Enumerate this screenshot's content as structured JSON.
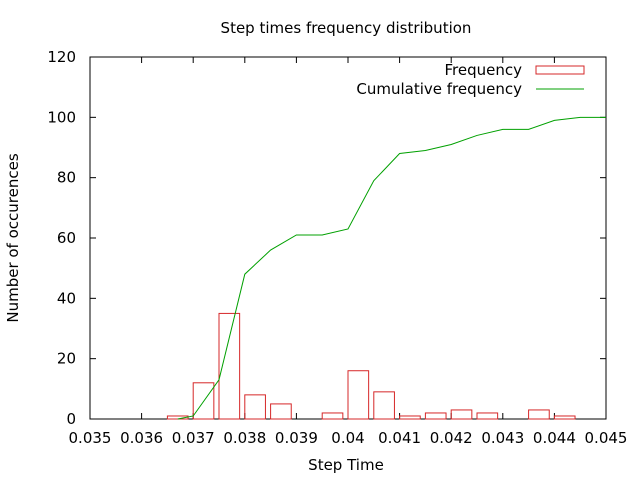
{
  "chart_data": {
    "type": "bar",
    "title": "Step times frequency distribution",
    "xlabel": "Step Time",
    "ylabel": "Number of occurences",
    "xlim": [
      0.035,
      0.045
    ],
    "ylim": [
      0,
      120
    ],
    "xticks": [
      "0.035",
      "0.036",
      "0.037",
      "0.038",
      "0.039",
      "0.04",
      "0.041",
      "0.042",
      "0.043",
      "0.044",
      "0.045"
    ],
    "yticks": [
      "0",
      "20",
      "40",
      "60",
      "80",
      "100",
      "120"
    ],
    "grid": false,
    "legend_position": "top-right",
    "bin_width": 0.0004,
    "series": [
      {
        "name": "Frequency",
        "kind": "bar",
        "color": "#d62728",
        "x": [
          0.0367,
          0.0372,
          0.0377,
          0.0382,
          0.0387,
          0.0392,
          0.0397,
          0.0402,
          0.0407,
          0.0412,
          0.0417,
          0.0422,
          0.0427,
          0.0432,
          0.0437,
          0.0442
        ],
        "values": [
          1,
          12,
          35,
          8,
          5,
          0,
          2,
          16,
          9,
          1,
          2,
          3,
          2,
          0,
          3,
          1
        ]
      },
      {
        "name": "Cumulative frequency",
        "kind": "line",
        "color": "#00a000",
        "x": [
          0.0367,
          0.037,
          0.0375,
          0.038,
          0.0385,
          0.039,
          0.0395,
          0.04,
          0.0405,
          0.041,
          0.0415,
          0.042,
          0.0425,
          0.043,
          0.0435,
          0.044,
          0.0445,
          0.045
        ],
        "values": [
          0,
          1,
          13,
          48,
          56,
          61,
          61,
          63,
          79,
          88,
          89,
          91,
          94,
          96,
          96,
          99,
          100,
          100
        ]
      }
    ]
  }
}
